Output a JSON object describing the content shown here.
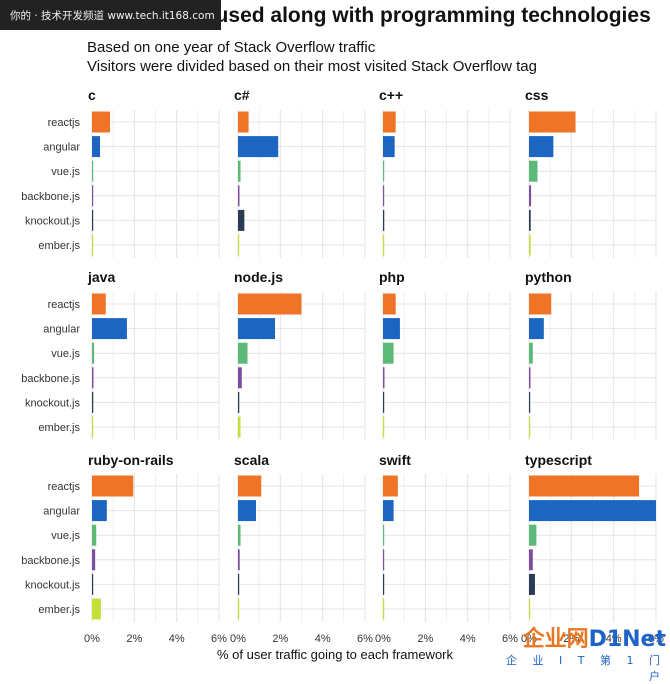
{
  "header": {
    "title": "Frameworks used along with programming technologies",
    "subtitle_line1": "Based on one year of Stack Overflow traffic",
    "subtitle_line2": "Visitors were divided based on their most visited Stack Overflow tag"
  },
  "watermark_top": "你的 · 技术开发频道 www.tech.it168.com",
  "watermark_brand": "企业网D1Net",
  "watermark_brand_main": "企业网",
  "watermark_brand_accent": "D1Net",
  "watermark_sub": "企 业 I T 第 1 门 户",
  "colors": {
    "reactjs": "#f07427",
    "angular": "#1c66c2",
    "vue.js": "#5cb978",
    "backbone.js": "#7d4e9e",
    "knockout.js": "#2b3a55",
    "ember.js": "#c2df3a",
    "grid": "#e4e4e4"
  },
  "chart_data": {
    "type": "bar",
    "orientation": "horizontal",
    "facet_by": "technology",
    "categories": [
      "reactjs",
      "angular",
      "vue.js",
      "backbone.js",
      "knockout.js",
      "ember.js"
    ],
    "xlim": [
      0,
      6
    ],
    "xticks": [
      "0%",
      "2%",
      "4%",
      "6%"
    ],
    "xlabel": "% of user traffic going to each framework",
    "ylabel": "",
    "grid": true,
    "legend": "none",
    "facets": [
      {
        "name": "c",
        "values": [
          0.85,
          0.38,
          0.05,
          0.05,
          0.05,
          0.05
        ]
      },
      {
        "name": "c#",
        "values": [
          0.5,
          1.9,
          0.12,
          0.07,
          0.3,
          0.05
        ]
      },
      {
        "name": "c++",
        "values": [
          0.6,
          0.55,
          0.05,
          0.05,
          0.06,
          0.03
        ]
      },
      {
        "name": "css",
        "values": [
          2.2,
          1.15,
          0.4,
          0.1,
          0.08,
          0.08
        ]
      },
      {
        "name": "java",
        "values": [
          0.65,
          1.65,
          0.1,
          0.07,
          0.06,
          0.05
        ]
      },
      {
        "name": "node.js",
        "values": [
          3.0,
          1.75,
          0.45,
          0.18,
          0.06,
          0.12
        ]
      },
      {
        "name": "php",
        "values": [
          0.6,
          0.8,
          0.5,
          0.07,
          0.05,
          0.03
        ]
      },
      {
        "name": "python",
        "values": [
          1.05,
          0.7,
          0.18,
          0.07,
          0.05,
          0.05
        ]
      },
      {
        "name": "ruby-on-rails",
        "values": [
          1.95,
          0.7,
          0.2,
          0.15,
          0.05,
          0.42
        ]
      },
      {
        "name": "scala",
        "values": [
          1.1,
          0.85,
          0.12,
          0.08,
          0.05,
          0.05
        ]
      },
      {
        "name": "swift",
        "values": [
          0.7,
          0.5,
          0.05,
          0.05,
          0.03,
          0.03
        ]
      },
      {
        "name": "typescript",
        "values": [
          5.2,
          6.0,
          0.35,
          0.18,
          0.28,
          0.05
        ]
      }
    ]
  }
}
